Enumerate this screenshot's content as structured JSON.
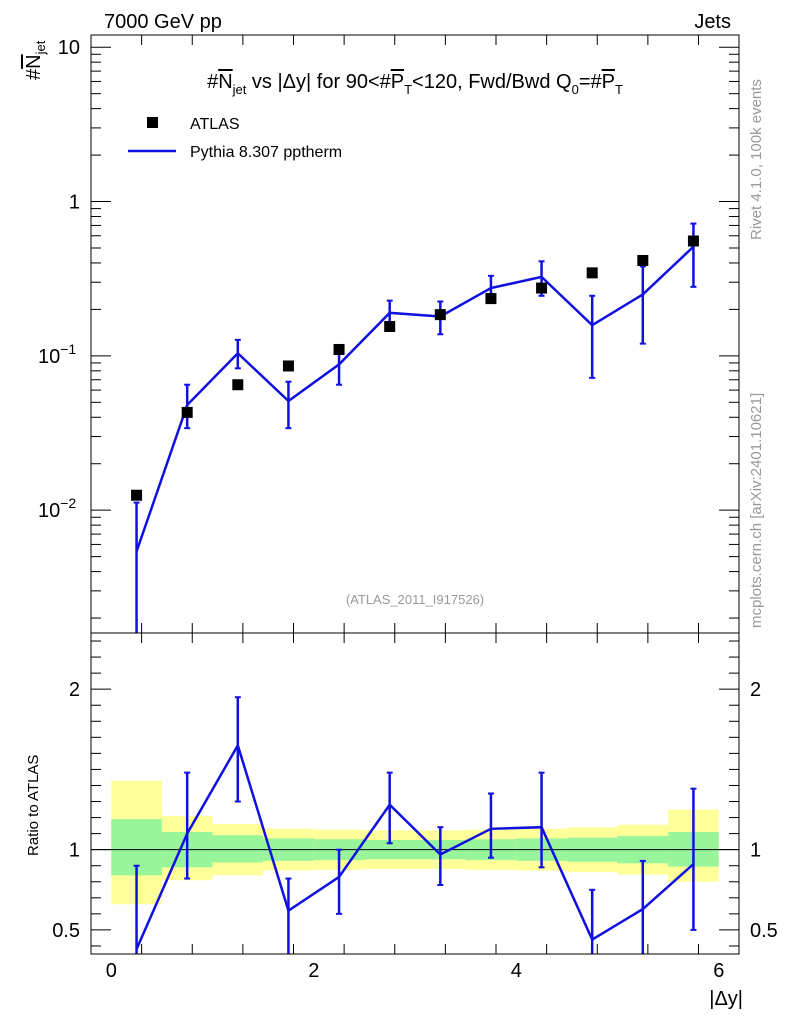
{
  "header": {
    "energy_label": "7000 GeV pp",
    "category_label": "Jets",
    "rivet_label": "Rivet 4.1.0,  100k events",
    "mcplots_label": "mcplots.cern.ch [arXiv:2401.10621]",
    "analysis_id": "(ATLAS_2011_I917526)"
  },
  "colors": {
    "mc": "#1010e0",
    "band_inner": "#99f599",
    "band_outer": "#ffff99",
    "data": "#000000"
  },
  "chart_data": [
    {
      "type": "scatter",
      "panel": "main",
      "title_parts": {
        "pre": "#",
        "n": "N",
        "n_sub": "jet",
        "mid": " vs |Δy| for 90<#",
        "p": "P",
        "p_sub": "T",
        "post": "<120, Fwd/Bwd Q",
        "q_sub": "0",
        "eq": "=#",
        "p2": "P",
        "p2_sub": "T"
      },
      "ylabel_parts": {
        "pre": "#",
        "n": "N",
        "sub": "jet"
      },
      "yscale": "log",
      "ylim": [
        0.0016,
        12
      ],
      "xlim": [
        -0.2,
        6.2
      ],
      "ytick_labels": [
        {
          "value": 10,
          "label": "10"
        },
        {
          "value": 1,
          "label": "1"
        },
        {
          "value": 0.1,
          "base": "10",
          "exp": "−1"
        },
        {
          "value": 0.01,
          "base": "10",
          "exp": "−2"
        }
      ],
      "legend": [
        {
          "label": "ATLAS",
          "kind": "marker"
        },
        {
          "label": "Pythia 8.307 pptherm",
          "kind": "line"
        }
      ],
      "series": [
        {
          "name": "ATLAS",
          "x": [
            0.25,
            0.75,
            1.25,
            1.75,
            2.25,
            2.75,
            3.25,
            3.75,
            4.25,
            4.75,
            5.25,
            5.75
          ],
          "y": [
            0.0125,
            0.043,
            0.065,
            0.086,
            0.11,
            0.155,
            0.185,
            0.235,
            0.275,
            0.345,
            0.415,
            0.555
          ]
        },
        {
          "name": "Pythia 8.307 pptherm",
          "x": [
            0.25,
            0.75,
            1.25,
            1.75,
            2.25,
            2.75,
            3.25,
            3.75,
            4.25,
            4.75,
            5.25,
            5.75
          ],
          "y": [
            0.0054,
            0.048,
            0.104,
            0.051,
            0.088,
            0.19,
            0.18,
            0.275,
            0.325,
            0.158,
            0.25,
            0.51
          ],
          "err_lo": [
            0.0016,
            0.034,
            0.083,
            0.034,
            0.065,
            0.158,
            0.138,
            0.225,
            0.245,
            0.072,
            0.12,
            0.28
          ],
          "err_hi": [
            0.0112,
            0.065,
            0.127,
            0.068,
            0.112,
            0.228,
            0.225,
            0.33,
            0.41,
            0.245,
            0.38,
            0.72
          ]
        }
      ]
    },
    {
      "type": "line",
      "panel": "ratio",
      "ylabel": "Ratio to ATLAS",
      "xlabel": "|Δy|",
      "ylim": [
        0.35,
        2.35
      ],
      "xlim": [
        -0.2,
        6.2
      ],
      "xticks": [
        0,
        2,
        4,
        6
      ],
      "xtick_labels": [
        "0",
        "2",
        "4",
        "6"
      ],
      "ytick_labels": [
        {
          "value": 2,
          "label": "2"
        },
        {
          "value": 1,
          "label": "1"
        },
        {
          "value": 0.5,
          "label": "0.5"
        }
      ],
      "bins": [
        {
          "lo": 0,
          "hi": 0.5,
          "in_lo": 0.84,
          "in_hi": 1.19,
          "out_lo": 0.66,
          "out_hi": 1.43
        },
        {
          "lo": 0.5,
          "hi": 1.0,
          "in_lo": 0.89,
          "in_hi": 1.11,
          "out_lo": 0.81,
          "out_hi": 1.21
        },
        {
          "lo": 1.0,
          "hi": 1.5,
          "in_lo": 0.92,
          "in_hi": 1.09,
          "out_lo": 0.84,
          "out_hi": 1.16
        },
        {
          "lo": 1.5,
          "hi": 2.0,
          "in_lo": 0.93,
          "in_hi": 1.07,
          "out_lo": 0.87,
          "out_hi": 1.13
        },
        {
          "lo": 2.0,
          "hi": 2.5,
          "in_lo": 0.935,
          "in_hi": 1.065,
          "out_lo": 0.875,
          "out_hi": 1.125
        },
        {
          "lo": 2.5,
          "hi": 3.0,
          "in_lo": 0.94,
          "in_hi": 1.06,
          "out_lo": 0.88,
          "out_hi": 1.12
        },
        {
          "lo": 3.0,
          "hi": 3.5,
          "in_lo": 0.94,
          "in_hi": 1.06,
          "out_lo": 0.88,
          "out_hi": 1.12
        },
        {
          "lo": 3.5,
          "hi": 4.0,
          "in_lo": 0.935,
          "in_hi": 1.065,
          "out_lo": 0.875,
          "out_hi": 1.125
        },
        {
          "lo": 4.0,
          "hi": 4.5,
          "in_lo": 0.93,
          "in_hi": 1.07,
          "out_lo": 0.87,
          "out_hi": 1.13
        },
        {
          "lo": 4.5,
          "hi": 5.0,
          "in_lo": 0.925,
          "in_hi": 1.075,
          "out_lo": 0.86,
          "out_hi": 1.14
        },
        {
          "lo": 5.0,
          "hi": 5.5,
          "in_lo": 0.915,
          "in_hi": 1.085,
          "out_lo": 0.845,
          "out_hi": 1.155
        },
        {
          "lo": 5.5,
          "hi": 6.0,
          "in_lo": 0.895,
          "in_hi": 1.11,
          "out_lo": 0.8,
          "out_hi": 1.25
        }
      ],
      "series": [
        {
          "name": "Pythia 8.307 pptherm / ATLAS",
          "x": [
            0.25,
            0.75,
            1.25,
            1.75,
            2.25,
            2.75,
            3.25,
            3.75,
            4.25,
            4.75,
            5.25,
            5.75
          ],
          "y": [
            0.38,
            1.1,
            1.65,
            0.62,
            0.83,
            1.28,
            0.97,
            1.13,
            1.14,
            0.44,
            0.63,
            0.91
          ],
          "err_lo": [
            0.35,
            0.82,
            1.3,
            0.35,
            0.6,
            1.04,
            0.78,
            0.95,
            0.89,
            0.35,
            0.35,
            0.5
          ],
          "err_hi": [
            0.9,
            1.48,
            1.95,
            0.82,
            1.0,
            1.48,
            1.14,
            1.35,
            1.48,
            0.75,
            0.93,
            1.38
          ]
        }
      ]
    }
  ]
}
